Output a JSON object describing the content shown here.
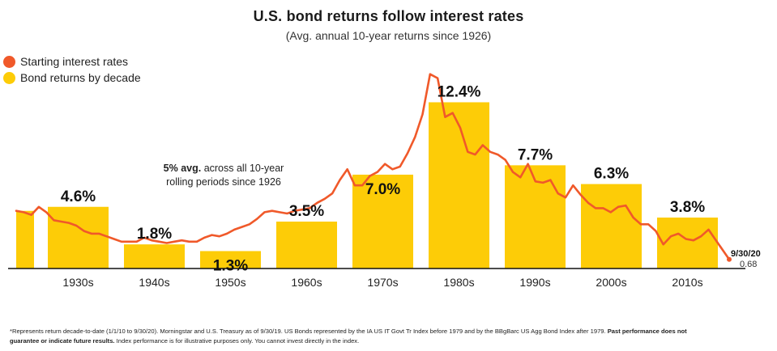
{
  "chart_data": {
    "type": "bar",
    "title": "U.S. bond returns follow interest rates",
    "subtitle": "(Avg. annual 10-year returns since 1926)",
    "legend": [
      {
        "label": "Starting interest rates",
        "color": "#f0592a",
        "shape": "circle"
      },
      {
        "label": "Bond returns by decade",
        "color": "#fdcc07",
        "shape": "circle"
      }
    ],
    "legend_position": "top-left",
    "categories": [
      "1930s",
      "1940s",
      "1950s",
      "1960s",
      "1970s",
      "1980s",
      "1990s",
      "2000s",
      "2010s"
    ],
    "series": [
      {
        "name": "Bond returns by decade",
        "values": [
          4.6,
          1.8,
          1.3,
          3.5,
          7.0,
          12.4,
          7.7,
          6.3,
          3.8
        ],
        "labels": [
          "4.6%",
          "1.8%",
          "1.3%",
          "3.5%",
          "7.0%",
          "12.4%",
          "7.7%",
          "6.3%",
          "3.8%"
        ],
        "color": "#fdcc07"
      },
      {
        "name": "Starting interest rates",
        "color": "#f0592a",
        "x": [
          1926,
          1927,
          1928,
          1929,
          1930,
          1931,
          1932,
          1933,
          1934,
          1935,
          1936,
          1937,
          1938,
          1939,
          1940,
          1941,
          1942,
          1943,
          1944,
          1945,
          1946,
          1947,
          1948,
          1949,
          1950,
          1951,
          1952,
          1953,
          1954,
          1955,
          1956,
          1957,
          1958,
          1959,
          1960,
          1961,
          1962,
          1963,
          1964,
          1965,
          1966,
          1967,
          1968,
          1969,
          1970,
          1971,
          1972,
          1973,
          1974,
          1975,
          1976,
          1977,
          1978,
          1979,
          1980,
          1981,
          1982,
          1983,
          1984,
          1985,
          1986,
          1987,
          1988,
          1989,
          1990,
          1991,
          1992,
          1993,
          1994,
          1995,
          1996,
          1997,
          1998,
          1999,
          2000,
          2001,
          2002,
          2003,
          2004,
          2005,
          2006,
          2007,
          2008,
          2009,
          2010,
          2011,
          2012,
          2013,
          2014,
          2015,
          2016,
          2017,
          2018,
          2019,
          2020.75
        ],
        "y": [
          4.3,
          4.2,
          4.0,
          4.6,
          4.2,
          3.6,
          3.5,
          3.4,
          3.2,
          2.8,
          2.6,
          2.6,
          2.4,
          2.2,
          2.0,
          2.0,
          2.0,
          2.3,
          2.1,
          2.0,
          1.9,
          2.0,
          2.1,
          2.0,
          2.0,
          2.3,
          2.5,
          2.4,
          2.6,
          2.9,
          3.1,
          3.3,
          3.7,
          4.2,
          4.3,
          4.2,
          4.1,
          4.3,
          4.4,
          4.5,
          4.9,
          5.2,
          5.6,
          6.6,
          7.4,
          6.2,
          6.2,
          6.9,
          7.2,
          7.8,
          7.4,
          7.6,
          8.6,
          9.8,
          11.5,
          14.5,
          14.2,
          11.3,
          11.6,
          10.5,
          8.7,
          8.5,
          9.2,
          8.7,
          8.5,
          8.1,
          7.2,
          6.8,
          7.8,
          6.5,
          6.4,
          6.6,
          5.6,
          5.3,
          6.2,
          5.5,
          4.9,
          4.5,
          4.5,
          4.2,
          4.6,
          4.7,
          3.8,
          3.3,
          3.3,
          2.8,
          1.8,
          2.4,
          2.6,
          2.2,
          2.1,
          2.4,
          2.9,
          2.1,
          0.68
        ]
      }
    ],
    "tick_labels": {
      "x": [
        "1930s",
        "1940s",
        "1950s",
        "1960s",
        "1970s",
        "1980s",
        "1990s",
        "2000s",
        "2010s"
      ]
    },
    "end_label": {
      "date": "9/30/20",
      "value": "0.68"
    },
    "annotation": {
      "bold": "5% avg.",
      "text_line1": " across all 10-year",
      "text_line2": "rolling periods since 1926"
    },
    "grid": false,
    "ylim": [
      0,
      15
    ],
    "xlabel": "",
    "ylabel": ""
  },
  "footnote": {
    "text": "*Represents return decade-to-date (1/1/10 to 9/30/20).  Morningstar and U.S. Treasury as of 9/30/19. US Bonds represented by the IA US IT Govt Tr Index before 1979 and by the BBgBarc US Agg Bond Index after 1979.",
    "bold_line1": "  Past performance does not",
    "bold_line2": "guarantee or indicate future results.",
    "text_line2": " Index performance is for illustrative purposes only. You cannot invest directly in the index."
  }
}
